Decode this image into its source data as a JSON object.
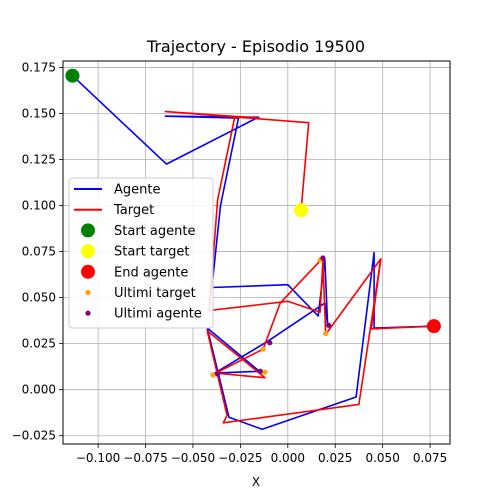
{
  "chart_data": {
    "type": "line",
    "title": "Trajectory - Episodio 19500",
    "xlabel": "X",
    "ylabel": "",
    "xlim": [
      -0.1185,
      0.0855
    ],
    "ylim": [
      -0.0295,
      0.1785
    ],
    "grid": true,
    "legend_position": "center-left",
    "x_ticks": [
      -0.1,
      -0.075,
      -0.05,
      -0.025,
      0.0,
      0.025,
      0.05,
      0.075
    ],
    "x_tick_labels": [
      "−0.100",
      "−0.075",
      "−0.050",
      "−0.025",
      "0.000",
      "0.025",
      "0.050",
      "0.075"
    ],
    "y_ticks": [
      -0.025,
      0.0,
      0.025,
      0.05,
      0.075,
      0.1,
      0.125,
      0.15,
      0.175
    ],
    "y_tick_labels": [
      "−0.025",
      "0.000",
      "0.025",
      "0.050",
      "0.075",
      "0.100",
      "0.125",
      "0.150",
      "0.175"
    ],
    "series": [
      {
        "name": "Agente",
        "kind": "line",
        "color": "#0000ff",
        "points": [
          [
            -0.1135,
            0.1705
          ],
          [
            -0.064,
            0.1225
          ],
          [
            -0.0155,
            0.148
          ],
          [
            -0.0645,
            0.1485
          ],
          [
            -0.026,
            0.1475
          ],
          [
            -0.0355,
            0.1
          ],
          [
            -0.04,
            0.0555
          ],
          [
            0.0,
            0.057
          ],
          [
            0.016,
            0.04
          ],
          [
            0.0195,
            0.071
          ],
          [
            0.021,
            0.035
          ],
          [
            0.0195,
            0.047
          ],
          [
            -0.011,
            0.026
          ],
          [
            -0.0385,
            0.009
          ],
          [
            -0.015,
            0.01
          ],
          [
            -0.0425,
            0.0335
          ],
          [
            -0.031,
            -0.015
          ],
          [
            -0.0135,
            -0.0215
          ],
          [
            0.036,
            -0.004
          ],
          [
            0.0455,
            0.0745
          ],
          [
            0.0455,
            0.0335
          ],
          [
            0.077,
            0.0345
          ]
        ]
      },
      {
        "name": "Target",
        "kind": "line",
        "color": "#ff0000",
        "points": [
          [
            0.007,
            0.0975
          ],
          [
            0.011,
            0.145
          ],
          [
            -0.0645,
            0.151
          ],
          [
            -0.015,
            0.1475
          ],
          [
            -0.028,
            0.148
          ],
          [
            -0.037,
            0.103
          ],
          [
            -0.0415,
            0.043
          ],
          [
            0.0,
            0.048
          ],
          [
            0.017,
            0.042
          ],
          [
            0.0185,
            0.07
          ],
          [
            0.02,
            0.03
          ],
          [
            0.049,
            0.071
          ],
          [
            0.044,
            0.033
          ],
          [
            0.077,
            0.0345
          ]
        ]
      },
      {
        "name": "Target",
        "kind": "line",
        "color": "#ff0000",
        "points": [
          [
            0.017,
            0.07
          ],
          [
            -0.004,
            0.047
          ],
          [
            -0.013,
            0.022
          ],
          [
            -0.038,
            0.009
          ],
          [
            -0.012,
            0.0065
          ],
          [
            -0.0425,
            0.032
          ],
          [
            -0.032,
            -0.014
          ],
          [
            -0.034,
            -0.018
          ],
          [
            0.0375,
            -0.008
          ],
          [
            0.049,
            0.071
          ]
        ]
      },
      {
        "name": "Start agente",
        "kind": "marker",
        "color": "#008000",
        "points": [
          [
            -0.1135,
            0.1705
          ]
        ]
      },
      {
        "name": "Start target",
        "kind": "marker",
        "color": "#ffff00",
        "points": [
          [
            0.007,
            0.0975
          ]
        ]
      },
      {
        "name": "End agente",
        "kind": "marker",
        "color": "#ff0000",
        "points": [
          [
            0.077,
            0.0345
          ]
        ]
      },
      {
        "name": "Ultimi target",
        "kind": "scatter",
        "color": "#ffa500",
        "points": [
          [
            0.017,
            0.0705
          ],
          [
            0.02,
            0.0305
          ],
          [
            -0.013,
            0.022
          ],
          [
            -0.0395,
            0.008
          ],
          [
            -0.012,
            0.0095
          ]
        ]
      },
      {
        "name": "Ultimi agente",
        "kind": "scatter",
        "color": "#800080",
        "points": [
          [
            0.0185,
            0.0715
          ],
          [
            0.0215,
            0.035
          ],
          [
            -0.0095,
            0.0255
          ],
          [
            -0.037,
            0.0085
          ],
          [
            -0.0145,
            0.01
          ]
        ]
      }
    ],
    "legend": [
      {
        "label": "Agente",
        "kind": "line",
        "color": "#0000ff"
      },
      {
        "label": "Target",
        "kind": "line",
        "color": "#ff0000"
      },
      {
        "label": "Start agente",
        "kind": "marker",
        "color": "#008000"
      },
      {
        "label": "Start target",
        "kind": "marker",
        "color": "#ffff00"
      },
      {
        "label": "End agente",
        "kind": "marker",
        "color": "#ff0000"
      },
      {
        "label": "Ultimi target",
        "kind": "scatter",
        "color": "#ffa500"
      },
      {
        "label": "Ultimi agente",
        "kind": "scatter",
        "color": "#800080"
      }
    ]
  }
}
